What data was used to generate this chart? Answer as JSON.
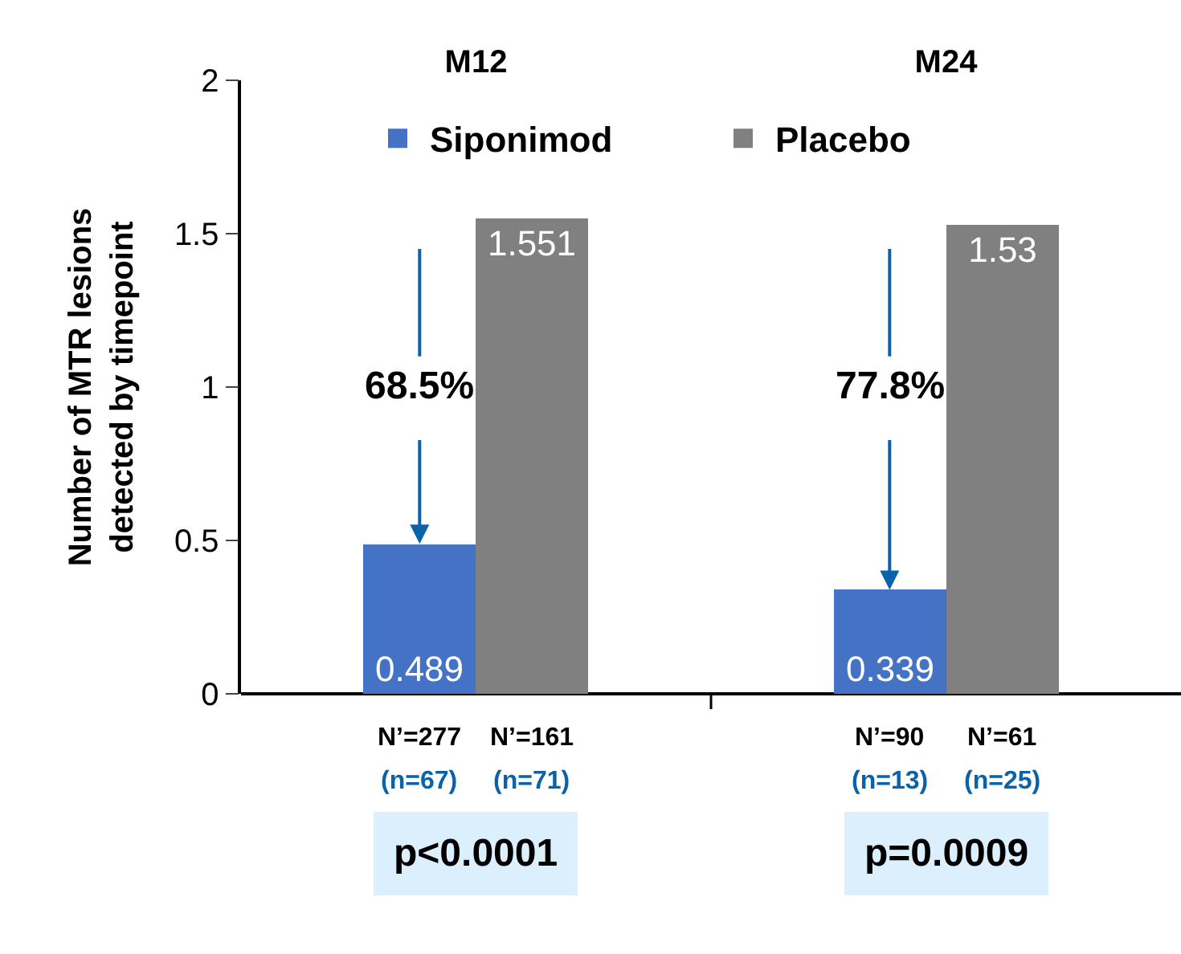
{
  "chart_data": {
    "type": "bar",
    "ylabel": "Number of MTR lesions\ndetected by timepoint",
    "categories": [
      "M12",
      "M24"
    ],
    "series": [
      {
        "name": "Siponimod",
        "color": "#4472c4",
        "values": [
          0.489,
          0.339
        ]
      },
      {
        "name": "Placebo",
        "color": "#808080",
        "values": [
          1.551,
          1.53
        ]
      }
    ],
    "ylim": [
      0,
      2
    ],
    "yticks": [
      0,
      0.5,
      1,
      1.5,
      2
    ],
    "legend": "top",
    "data_labels": true,
    "annotations": [
      {
        "text": "68.5%",
        "y": 0.489
      },
      {
        "text": "77.8%",
        "y": 0.339
      },
      "N’=277",
      "(n=67)",
      "N’=161",
      "(n=71)",
      "N’=90",
      "(n=13)",
      "N’=61",
      "(n=25)",
      "p<0.0001",
      "p=0.0009"
    ]
  }
}
